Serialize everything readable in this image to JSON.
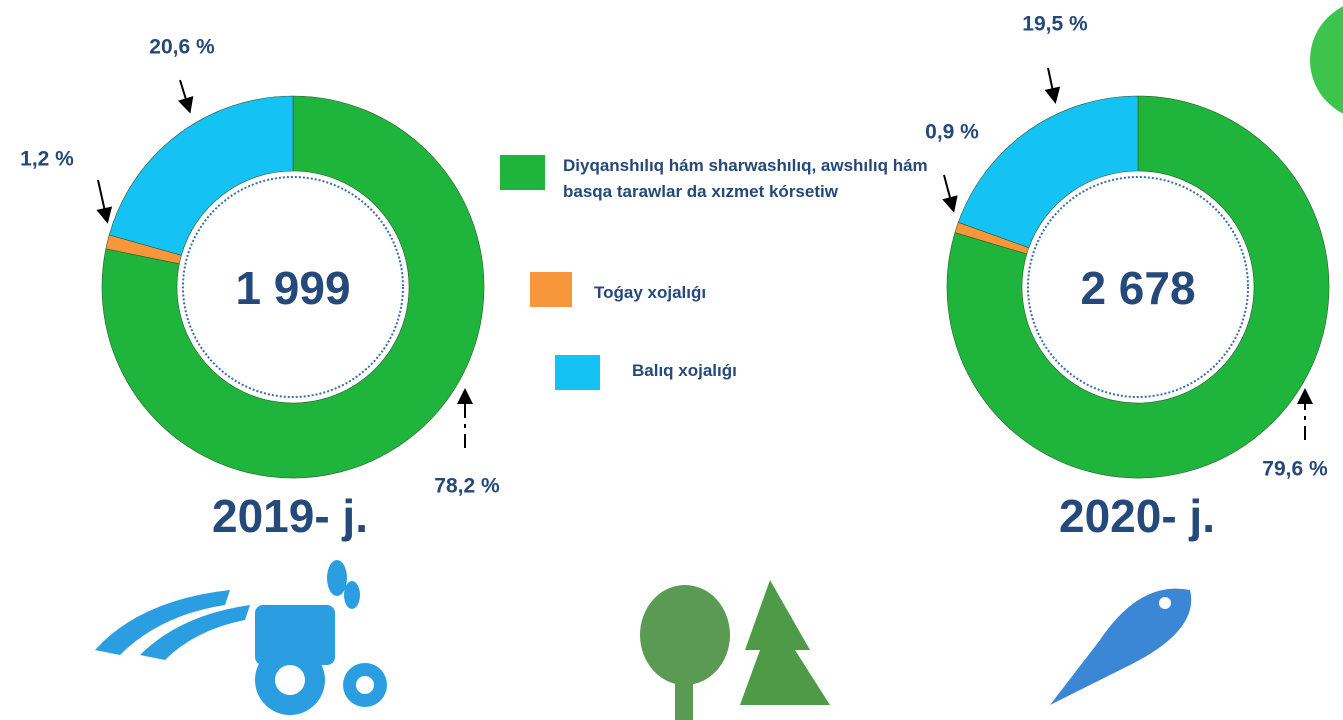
{
  "legend": [
    {
      "name": "Diyqanshılıq hám sharwashılıq, awshılıq hám basqa tarawlar da xızmet  kórsetiw",
      "color": "#1fb53c"
    },
    {
      "name": "Toǵay xojalıǵı",
      "color": "#f7963b"
    },
    {
      "name": "Balıq xojalıǵı",
      "color": "#14c3f3"
    }
  ],
  "chart_data": [
    {
      "type": "pie",
      "title": "2019- j.",
      "center_label": "1 999",
      "values": [
        78.2,
        1.2,
        20.6
      ],
      "value_labels": [
        "78,2 %",
        "1,2 %",
        "20,6 %"
      ]
    },
    {
      "type": "pie",
      "title": "2020- j.",
      "center_label": "2 678",
      "values": [
        79.6,
        0.9,
        19.5
      ],
      "value_labels": [
        "79,6 %",
        "0,9 %",
        "19,5 %"
      ]
    }
  ]
}
